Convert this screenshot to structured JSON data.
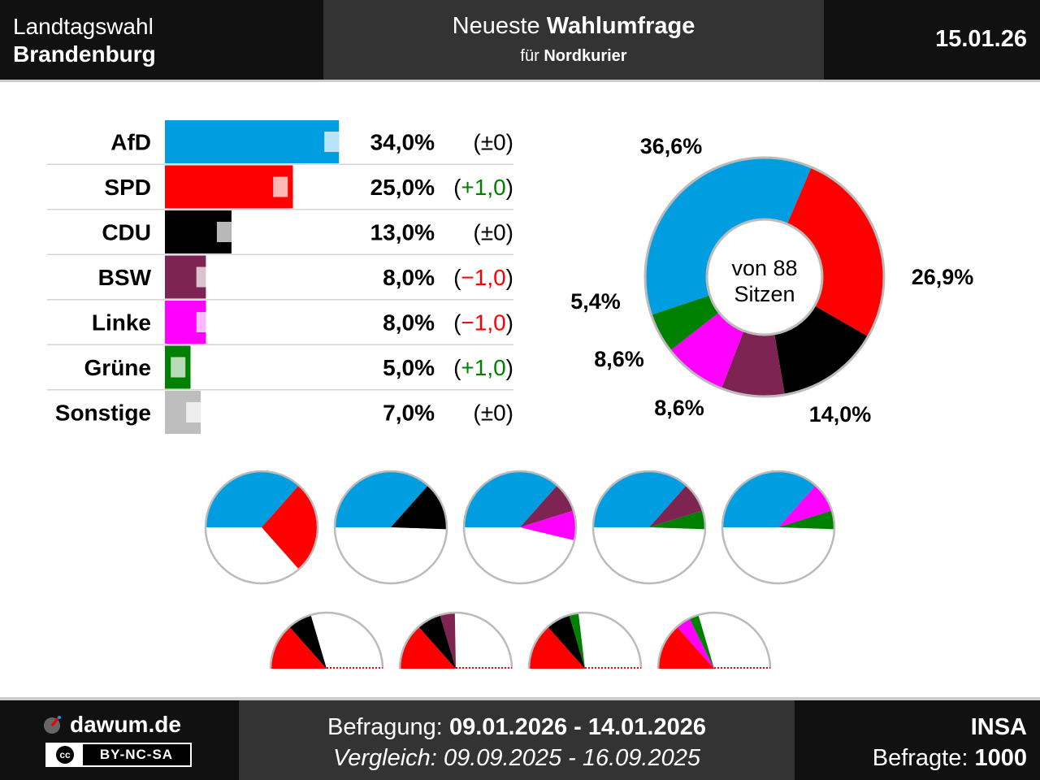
{
  "header": {
    "left_line1": "Landtagswahl",
    "left_line2": "Brandenburg",
    "title_prefix": "Neueste",
    "title_bold": "Wahlumfrage",
    "subtitle_prefix": "für",
    "subtitle_bold": "Nordkurier",
    "date": "15.01.26"
  },
  "footer": {
    "brand": "dawum.de",
    "license": "BY-NC-SA",
    "license_badge": "cc",
    "survey_label": "Befragung:",
    "survey_period": "09.01.2026 - 14.01.2026",
    "compare_label": "Vergleich:",
    "compare_period": "09.09.2025 - 16.09.2025",
    "institute": "INSA",
    "respondents_label": "Befragte:",
    "respondents": "1000"
  },
  "colors": {
    "AfD": "#009ee0",
    "SPD": "#ff0000",
    "CDU": "#000000",
    "BSW": "#7d2452",
    "Linke": "#ff00ff",
    "Grüne": "#008000",
    "Sonstige": "#bebebe",
    "positive": "#008000",
    "negative": "#ff0000"
  },
  "chart_data": [
    {
      "type": "bar",
      "categories": [
        "AfD",
        "SPD",
        "CDU",
        "BSW",
        "Linke",
        "Grüne",
        "Sonstige"
      ],
      "series": [
        {
          "values": [
            34.0,
            25.0,
            13.0,
            8.0,
            8.0,
            5.0,
            7.0
          ]
        },
        {
          "values": [
            34.0,
            24.0,
            13.0,
            9.0,
            9.0,
            4.0,
            7.0
          ]
        }
      ],
      "value_labels": [
        "34,0%",
        "25,0%",
        "13,0%",
        "8,0%",
        "8,0%",
        "5,0%",
        "7,0%"
      ],
      "change_labels": [
        "(±0)",
        "(+1,0)",
        "(±0)",
        "(−1,0)",
        "(−1,0)",
        "(+1,0)",
        "(±0)"
      ],
      "change_signs": [
        0,
        1,
        0,
        -1,
        -1,
        1,
        0
      ],
      "xlim": [
        0,
        100
      ]
    },
    {
      "type": "pie",
      "variant": "donut",
      "center_label_line1": "von 88",
      "center_label_line2": "Sitzen",
      "categories": [
        "AfD",
        "SPD",
        "CDU",
        "BSW",
        "Linke",
        "Grüne"
      ],
      "values": [
        36.6,
        26.9,
        14.0,
        8.6,
        8.6,
        5.4
      ],
      "value_labels": [
        "36,6%",
        "26,9%",
        "14,0%",
        "8,6%",
        "8,6%",
        "5,4%"
      ]
    },
    {
      "type": "pie",
      "variant": "coalitions",
      "coalitions": [
        [
          "AfD",
          "SPD"
        ],
        [
          "AfD",
          "CDU"
        ],
        [
          "AfD",
          "BSW",
          "Linke"
        ],
        [
          "AfD",
          "BSW",
          "Grüne"
        ],
        [
          "AfD",
          "Linke",
          "Grüne"
        ]
      ],
      "coalitions_half": [
        [
          "SPD",
          "CDU"
        ],
        [
          "SPD",
          "CDU",
          "BSW"
        ],
        [
          "SPD",
          "CDU",
          "Grüne"
        ],
        [
          "SPD",
          "Linke",
          "Grüne"
        ]
      ]
    }
  ]
}
